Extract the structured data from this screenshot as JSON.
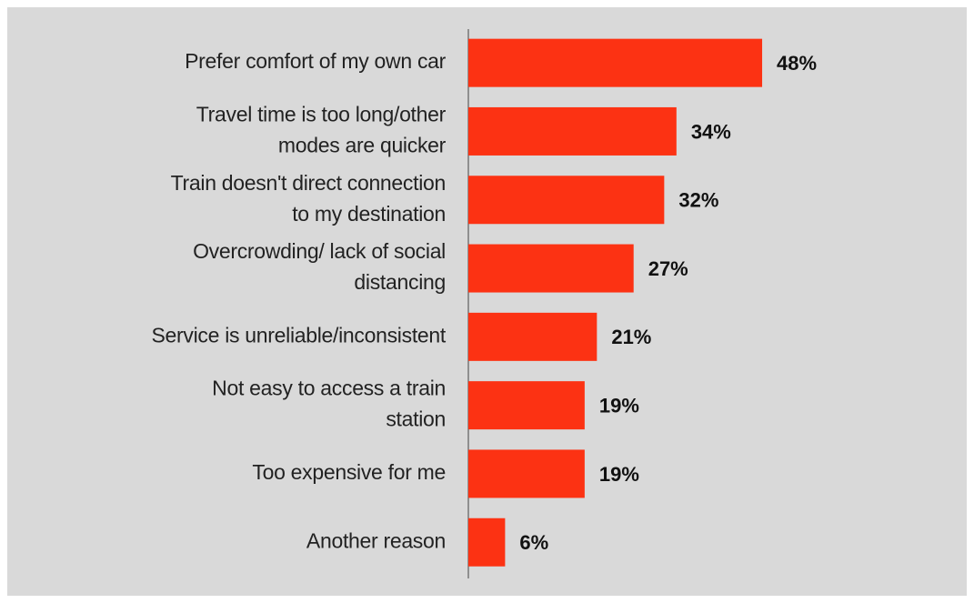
{
  "chart_data": {
    "type": "bar",
    "orientation": "horizontal",
    "categories": [
      "Prefer comfort of my own car",
      "Travel time is too long/other\nmodes are quicker",
      "Train doesn't direct connection\nto my destination",
      "Overcrowding/ lack of social\ndistancing",
      "Service is unreliable/inconsistent",
      "Not easy to access a train\nstation",
      "Too expensive for me",
      "Another reason"
    ],
    "values": [
      48,
      34,
      32,
      27,
      21,
      19,
      19,
      6
    ],
    "value_labels": [
      "48%",
      "34%",
      "32%",
      "27%",
      "21%",
      "19%",
      "19%",
      "6%"
    ],
    "color": "#fc3213"
  }
}
